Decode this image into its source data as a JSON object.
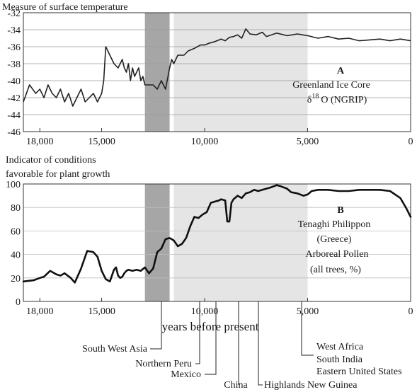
{
  "chart_data": [
    {
      "id": "A",
      "type": "line",
      "title": "Measure of surface temperature",
      "xlabel": "",
      "ylabel": "",
      "xlim": [
        18800,
        0
      ],
      "ylim": [
        -46,
        -32
      ],
      "x_ticks": [
        18000,
        15000,
        10000,
        5000,
        0
      ],
      "x_tick_labels": [
        "18,000",
        "15,000",
        "10,000",
        "5,000",
        "0"
      ],
      "y_ticks": [
        -32,
        -34,
        -36,
        -38,
        -40,
        -42,
        -44,
        -46
      ],
      "y_tick_labels": [
        "-32",
        "-34",
        "-36",
        "-38",
        "-40",
        "-42",
        "-44",
        "-46"
      ],
      "shaded_regions": [
        {
          "from": 12900,
          "to": 11700,
          "shade": "#a6a6a6"
        },
        {
          "from": 11500,
          "to": 5000,
          "shade": "#e5e5e5"
        }
      ],
      "annotation": {
        "letter": "A",
        "line1": "Greenland Ice Core",
        "delta": "δ",
        "sup": "18",
        "line2_rest": "O (NGRIP)"
      },
      "series": [
        {
          "name": "δ18O (NGRIP)",
          "x": [
            18800,
            18500,
            18200,
            18000,
            17800,
            17600,
            17400,
            17200,
            17000,
            16800,
            16600,
            16400,
            16200,
            16000,
            15800,
            15600,
            15400,
            15200,
            15000,
            14900,
            14800,
            14700,
            14600,
            14500,
            14400,
            14200,
            14000,
            13900,
            13800,
            13700,
            13600,
            13500,
            13400,
            13300,
            13200,
            13100,
            13000,
            12900,
            12700,
            12500,
            12300,
            12100,
            11900,
            11700,
            11600,
            11500,
            11300,
            11000,
            10800,
            10500,
            10200,
            10000,
            9800,
            9500,
            9200,
            9000,
            8800,
            8600,
            8400,
            8200,
            8000,
            7800,
            7500,
            7200,
            7000,
            6500,
            6000,
            5500,
            5000,
            4500,
            4000,
            3500,
            3000,
            2500,
            2000,
            1500,
            1000,
            500,
            0
          ],
          "values": [
            -42.5,
            -40.5,
            -41.5,
            -41,
            -42,
            -40.5,
            -41.5,
            -42,
            -41,
            -42.5,
            -41.5,
            -43,
            -42,
            -41,
            -42.5,
            -42,
            -41.5,
            -42.5,
            -41.5,
            -40,
            -36,
            -36.5,
            -37,
            -37.5,
            -38,
            -38.5,
            -37.5,
            -38.5,
            -39,
            -38,
            -40,
            -38.5,
            -39.5,
            -39,
            -38.5,
            -40,
            -39.5,
            -40.5,
            -40.5,
            -40.5,
            -41,
            -40,
            -41,
            -38.5,
            -37.5,
            -38,
            -37,
            -37,
            -36.5,
            -36.2,
            -35.8,
            -35.8,
            -35.6,
            -35.4,
            -35.1,
            -35.3,
            -34.9,
            -34.8,
            -34.6,
            -35.0,
            -33.9,
            -34.5,
            -34.6,
            -34.3,
            -34.8,
            -34.4,
            -34.7,
            -34.5,
            -34.7,
            -35.0,
            -34.8,
            -35.1,
            -35.0,
            -35.3,
            -35.2,
            -35.1,
            -35.3,
            -35.1,
            -35.3
          ]
        }
      ]
    },
    {
      "id": "B",
      "type": "line",
      "title": "Indicator of conditions favorable for plant growth",
      "title_lines": [
        "Indicator of conditions",
        "favorable for plant growth"
      ],
      "xlabel": "years before present",
      "ylabel": "",
      "xlim": [
        18800,
        0
      ],
      "ylim": [
        0,
        100
      ],
      "x_ticks": [
        18000,
        15000,
        10000,
        5000,
        0
      ],
      "x_tick_labels": [
        "18,000",
        "15,000",
        "10,000",
        "5,000",
        "0"
      ],
      "y_ticks": [
        100,
        80,
        60,
        40,
        20,
        0
      ],
      "y_tick_labels": [
        "100",
        "80",
        "60",
        "40",
        "20",
        "0"
      ],
      "shaded_regions": [
        {
          "from": 12900,
          "to": 11700,
          "shade": "#a6a6a6"
        },
        {
          "from": 11500,
          "to": 5000,
          "shade": "#e5e5e5"
        }
      ],
      "annotation": {
        "letter": "B",
        "lines": [
          "Tenaghi Philippon",
          "(Greece)",
          "Arboreal Pollen",
          "(all trees, %)"
        ]
      },
      "series": [
        {
          "name": "Arboreal Pollen (all trees, %)",
          "x": [
            18800,
            18300,
            18000,
            17800,
            17500,
            17200,
            17000,
            16800,
            16500,
            16300,
            16000,
            15700,
            15400,
            15200,
            15000,
            14800,
            14600,
            14400,
            14300,
            14200,
            14100,
            14000,
            13900,
            13800,
            13700,
            13500,
            13300,
            13100,
            12900,
            12700,
            12500,
            12300,
            12100,
            11900,
            11700,
            11500,
            11300,
            11100,
            10900,
            10700,
            10500,
            10300,
            10100,
            9900,
            9700,
            9500,
            9300,
            9200,
            9000,
            8900,
            8800,
            8700,
            8600,
            8400,
            8200,
            8000,
            7800,
            7600,
            7400,
            7200,
            7000,
            6800,
            6500,
            6300,
            6000,
            5800,
            5500,
            5200,
            5000,
            4800,
            4500,
            4200,
            4000,
            3500,
            3000,
            2500,
            2000,
            1500,
            1000,
            500,
            200,
            0
          ],
          "values": [
            17,
            18,
            20,
            21,
            26,
            23,
            22,
            24,
            20,
            16,
            28,
            43,
            42,
            38,
            26,
            19,
            17,
            27,
            29,
            22,
            20,
            21,
            24,
            26,
            27,
            26,
            27,
            26,
            29,
            24,
            28,
            42,
            45,
            53,
            54,
            52,
            47,
            49,
            54,
            64,
            72,
            71,
            74,
            76,
            84,
            85,
            86,
            87,
            86,
            68,
            68,
            84,
            87,
            90,
            88,
            92,
            93,
            95,
            94,
            95,
            96,
            97,
            99,
            98,
            96,
            93,
            92,
            90,
            91,
            94,
            95,
            95,
            95,
            94,
            94,
            95,
            95,
            95,
            94,
            88,
            79,
            72
          ]
        }
      ]
    }
  ],
  "regions": [
    {
      "name": "South West Asia",
      "year": 11500
    },
    {
      "name": "Northern Peru",
      "year": 10000
    },
    {
      "name": "Mexico",
      "year": 9000
    },
    {
      "name": "China",
      "year": 8000
    },
    {
      "name": "Highlands New Guinea",
      "year": 7000
    },
    {
      "name": "West Africa",
      "year": 5000
    },
    {
      "name": "South India",
      "year": 5000
    },
    {
      "name": "Eastern United States",
      "year": 5000
    }
  ]
}
